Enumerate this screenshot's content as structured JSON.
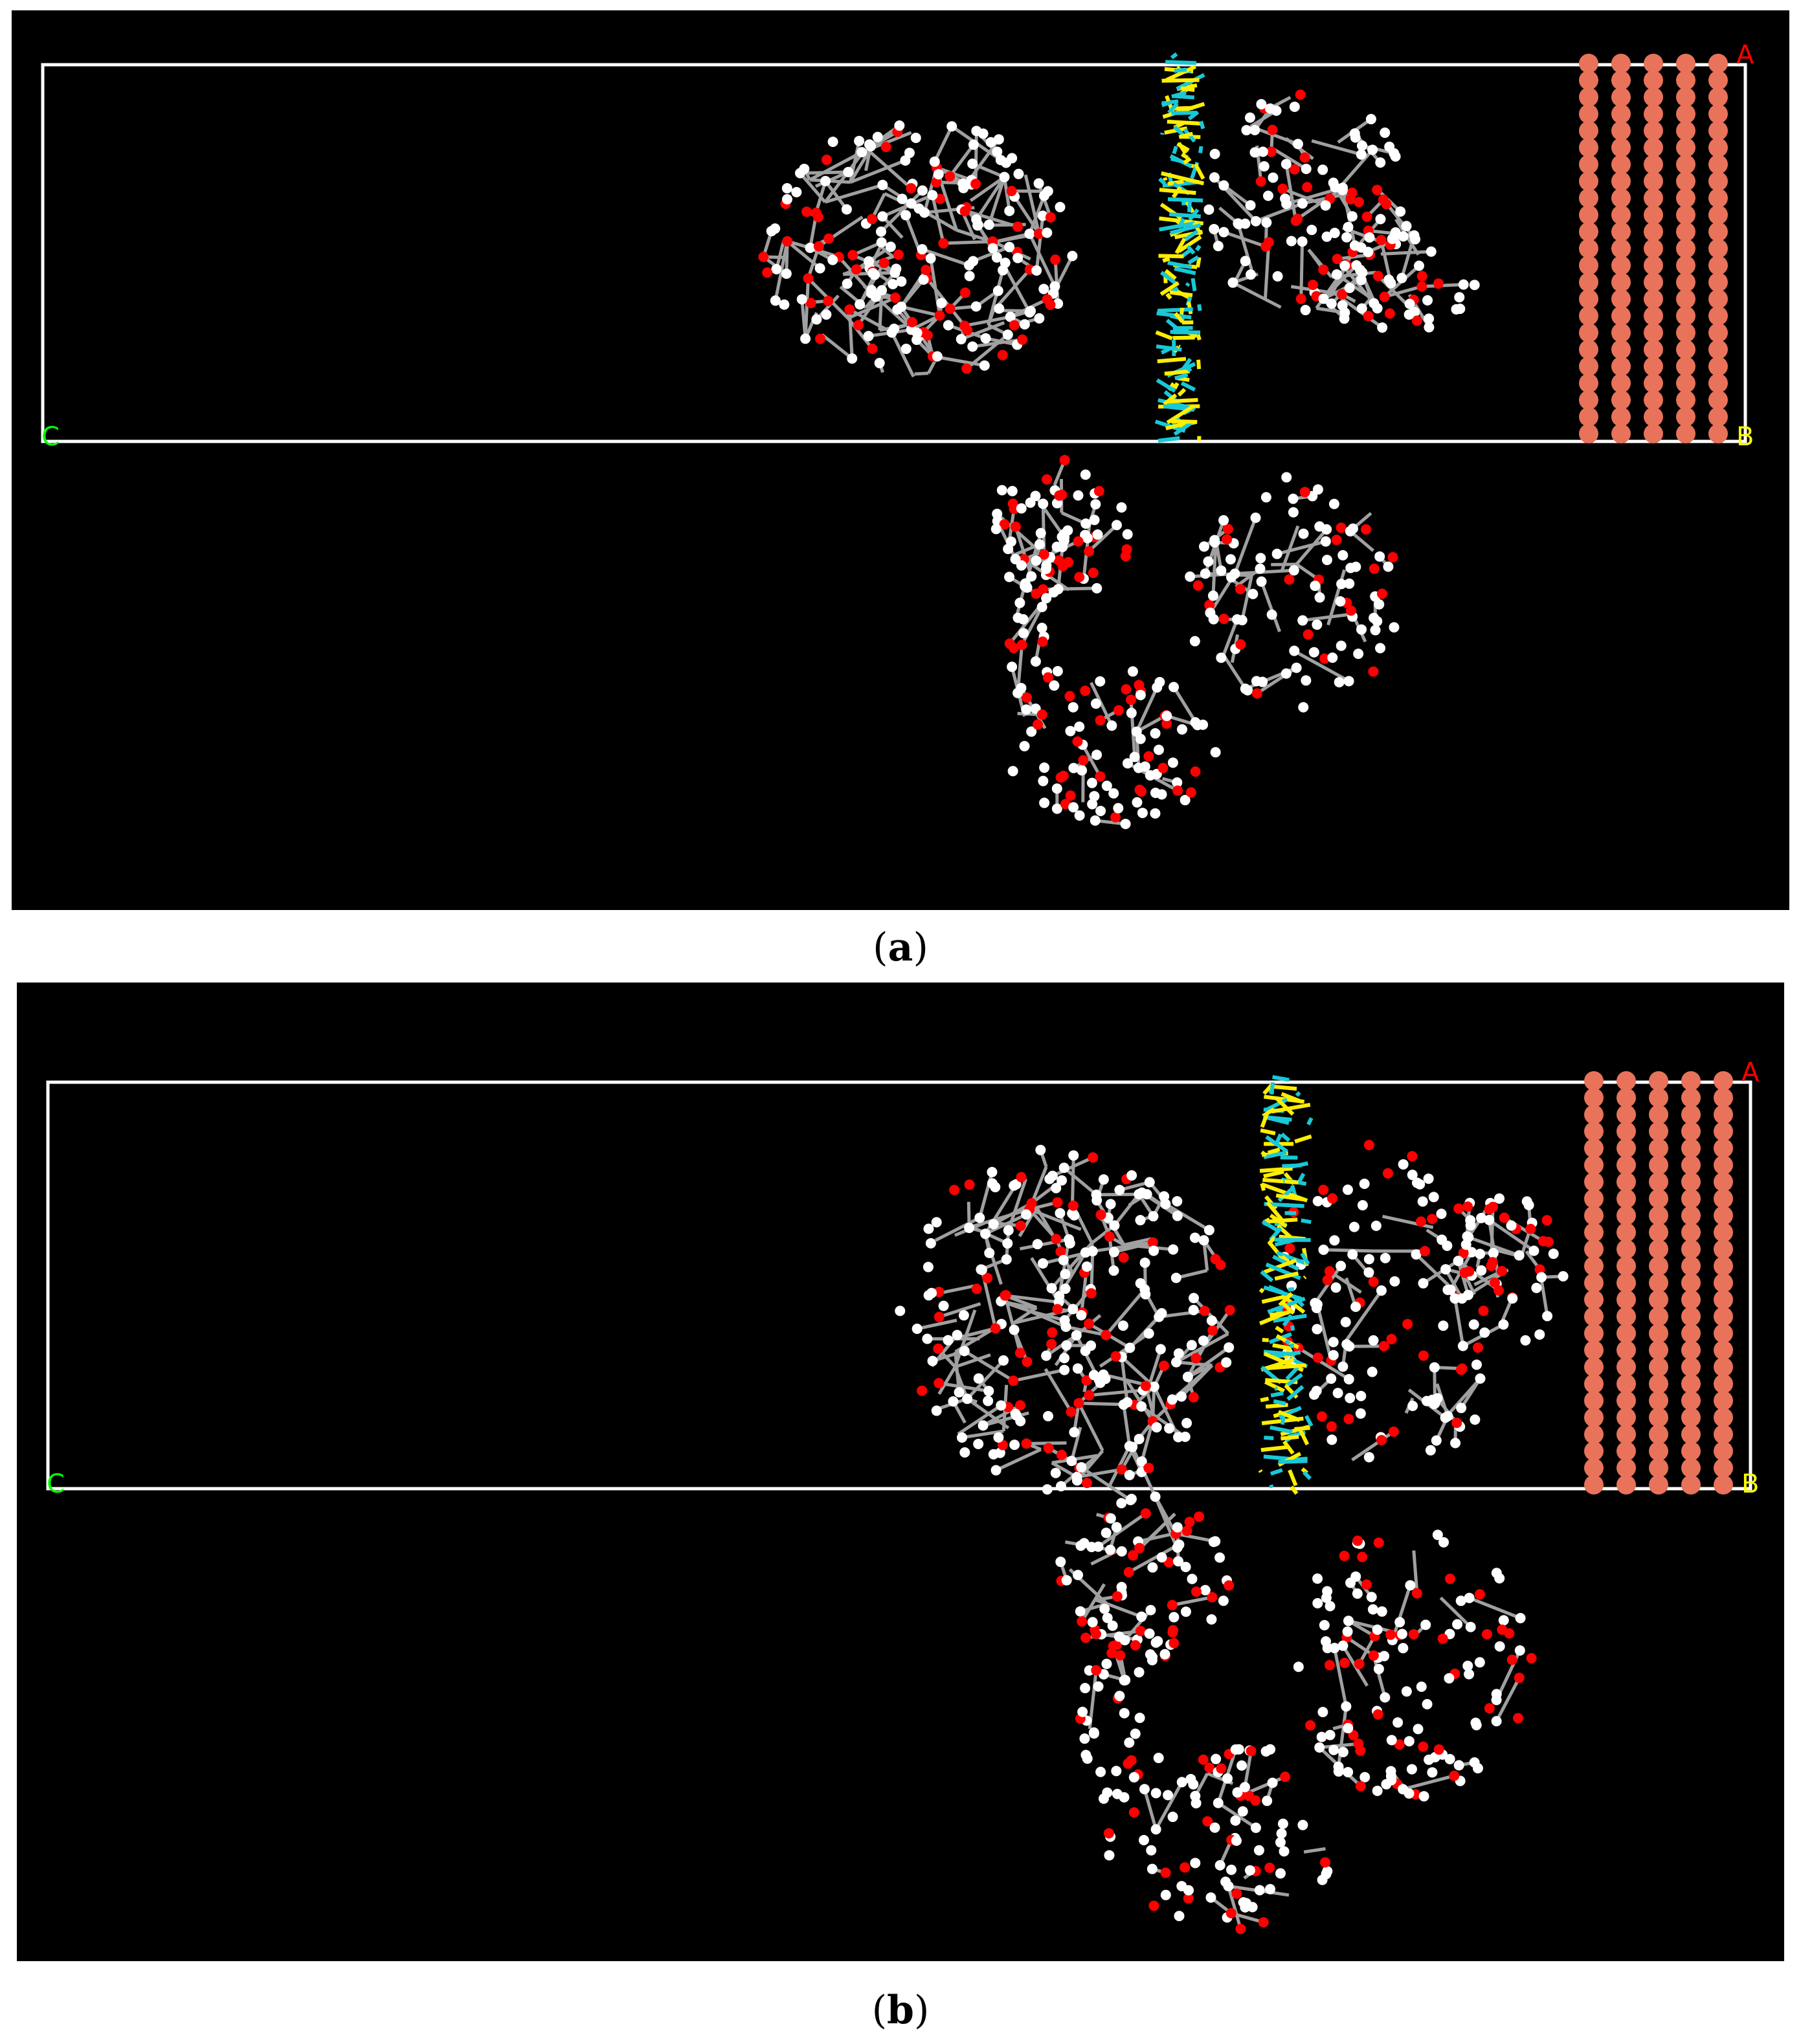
{
  "panels": [
    {
      "id": "a",
      "caption_open": "(",
      "caption_letter": "a",
      "caption_close": ")",
      "axis_labels": {
        "A": "A",
        "B": "B",
        "C": "C"
      }
    },
    {
      "id": "b",
      "caption_open": "(",
      "caption_letter": "b",
      "caption_close": ")",
      "axis_labels": {
        "A": "A",
        "B": "B",
        "C": "C"
      }
    }
  ],
  "colors": {
    "background": "#000000",
    "cell_box": "#ffffff",
    "axis_A": "#ff0000",
    "axis_B": "#ffff00",
    "axis_C": "#00ff00",
    "copper_atom": "#e8735a",
    "carbon_bond": "#a0a0a0",
    "hydrogen_atom": "#ffffff",
    "oxygen_atom": "#ff0000",
    "chain_yellow": "#ffee00",
    "chain_cyan": "#19c8d6"
  }
}
